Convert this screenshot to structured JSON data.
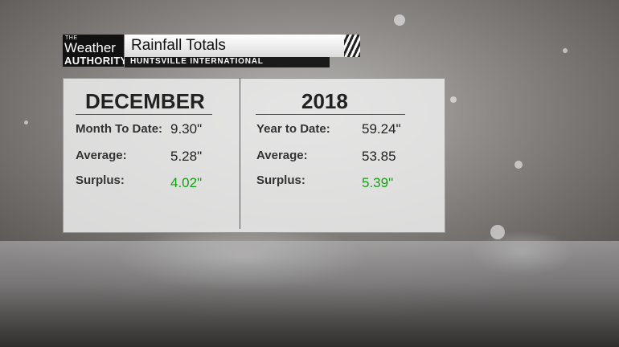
{
  "branding": {
    "logo_top": "THE",
    "logo_middle": "Weather",
    "logo_bottom": "AUTHORITY"
  },
  "header": {
    "title": "Rainfall Totals",
    "subtitle": "HUNTSVILLE INTERNATIONAL"
  },
  "month": {
    "heading": "DECEMBER",
    "rows": [
      {
        "label": "Month To Date:",
        "value": "9.30\""
      },
      {
        "label": "Average:",
        "value": "5.28\""
      },
      {
        "label": "Surplus:",
        "value": "4.02\""
      }
    ]
  },
  "year": {
    "heading": "2018",
    "rows": [
      {
        "label": "Year to Date:",
        "value": "59.24\""
      },
      {
        "label": "Average:",
        "value": "53.85"
      },
      {
        "label": "Surplus:",
        "value": "5.39\""
      }
    ]
  },
  "colors": {
    "surplus": "#13a113"
  }
}
